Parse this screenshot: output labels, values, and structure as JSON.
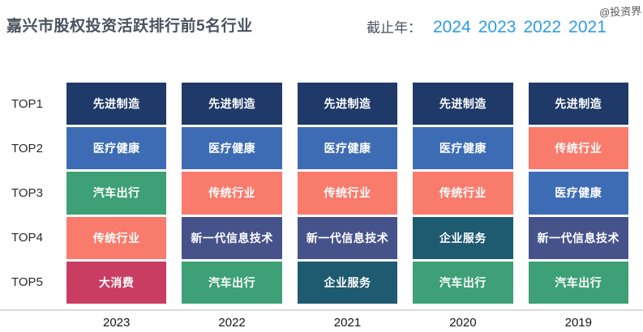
{
  "header": {
    "title": "嘉兴市股权投资活跃排行前5名行业",
    "filter_label": "截止年：",
    "years": [
      "2024",
      "2023",
      "2022",
      "2021"
    ],
    "watermark": "@投资界"
  },
  "chart_data": {
    "type": "table",
    "title": "嘉兴市股权投资活跃排行前5名行业",
    "row_labels": [
      "TOP1",
      "TOP2",
      "TOP3",
      "TOP4",
      "TOP5"
    ],
    "categories": [
      "2023",
      "2022",
      "2021",
      "2020",
      "2019"
    ],
    "series": [
      {
        "year": "2023",
        "ranks": [
          "先进制造",
          "医疗健康",
          "汽车出行",
          "传统行业",
          "大消费"
        ]
      },
      {
        "year": "2022",
        "ranks": [
          "先进制造",
          "医疗健康",
          "传统行业",
          "新一代信息技术",
          "汽车出行"
        ]
      },
      {
        "year": "2021",
        "ranks": [
          "先进制造",
          "医疗健康",
          "传统行业",
          "新一代信息技术",
          "企业服务"
        ]
      },
      {
        "year": "2020",
        "ranks": [
          "先进制造",
          "医疗健康",
          "传统行业",
          "企业服务",
          "汽车出行"
        ]
      },
      {
        "year": "2019",
        "ranks": [
          "先进制造",
          "传统行业",
          "医疗健康",
          "新一代信息技术",
          "汽车出行"
        ]
      }
    ],
    "category_colors": {
      "先进制造": "#1f3a68",
      "医疗健康": "#3d6cb4",
      "汽车出行": "#3ea076",
      "传统行业": "#f97b6c",
      "大消费": "#c93d63",
      "新一代信息技术": "#46538a",
      "企业服务": "#1e5a70"
    },
    "cell_text_color": "#ffffff",
    "accent_blue": "#2e9be8",
    "legend_position": "none",
    "grid": false
  }
}
